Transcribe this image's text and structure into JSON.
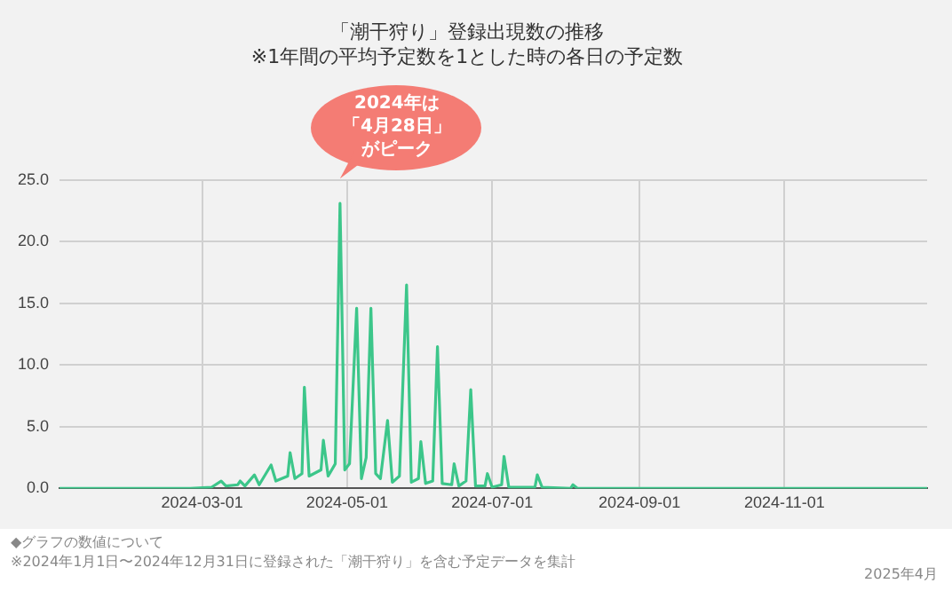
{
  "chart_data": {
    "type": "line",
    "title": "「潮干狩り」登録出現数の推移",
    "subtitle": "※1年間の平均予定数を1とした時の各日の予定数",
    "x": [
      "2024-01-01",
      "2024-02-25",
      "2024-03-05",
      "2024-03-09",
      "2024-03-11",
      "2024-03-16",
      "2024-03-17",
      "2024-03-19",
      "2024-03-23",
      "2024-03-25",
      "2024-03-30",
      "2024-04-01",
      "2024-04-06",
      "2024-04-07",
      "2024-04-09",
      "2024-04-12",
      "2024-04-13",
      "2024-04-15",
      "2024-04-20",
      "2024-04-21",
      "2024-04-23",
      "2024-04-26",
      "2024-04-28",
      "2024-04-30",
      "2024-05-02",
      "2024-05-05",
      "2024-05-07",
      "2024-05-09",
      "2024-05-11",
      "2024-05-13",
      "2024-05-15",
      "2024-05-18",
      "2024-05-20",
      "2024-05-23",
      "2024-05-26",
      "2024-05-28",
      "2024-05-31",
      "2024-06-01",
      "2024-06-03",
      "2024-06-06",
      "2024-06-08",
      "2024-06-10",
      "2024-06-14",
      "2024-06-15",
      "2024-06-17",
      "2024-06-20",
      "2024-06-22",
      "2024-06-24",
      "2024-06-28",
      "2024-06-29",
      "2024-07-01",
      "2024-07-05",
      "2024-07-06",
      "2024-07-08",
      "2024-07-19",
      "2024-07-20",
      "2024-07-22",
      "2024-08-03",
      "2024-08-04",
      "2024-08-06",
      "2024-12-31"
    ],
    "series": [
      {
        "color": "#3cc68a",
        "values": [
          0,
          0,
          0.1,
          0.6,
          0.2,
          0.3,
          0.6,
          0.2,
          1.1,
          0.3,
          1.9,
          0.6,
          1.0,
          2.9,
          0.8,
          1.2,
          8.2,
          1.0,
          1.5,
          3.9,
          1.0,
          2.0,
          23.1,
          1.5,
          2.0,
          14.6,
          0.8,
          2.5,
          14.6,
          1.2,
          0.8,
          5.5,
          0.5,
          1.0,
          16.5,
          0.5,
          0.8,
          3.8,
          0.4,
          0.6,
          11.5,
          0.4,
          0.3,
          2.0,
          0.2,
          0.6,
          8.0,
          0.2,
          0.2,
          1.2,
          0.1,
          0.3,
          2.6,
          0.1,
          0.1,
          1.1,
          0.1,
          0,
          0.3,
          0,
          0
        ]
      }
    ],
    "xlim": [
      "2024-01-01",
      "2024-12-31"
    ],
    "xticks": [
      "2024-03-01",
      "2024-05-01",
      "2024-07-01",
      "2024-09-01",
      "2024-11-01"
    ],
    "ylim": [
      0,
      25
    ],
    "yticks": [
      {
        "value": 0,
        "label": "0.0"
      },
      {
        "value": 5,
        "label": "5.0"
      },
      {
        "value": 10,
        "label": "10.0"
      },
      {
        "value": 15,
        "label": "15.0"
      },
      {
        "value": 20,
        "label": "20.0"
      },
      {
        "value": 25,
        "label": "25.0"
      }
    ],
    "grid": true,
    "legend": false,
    "marker": "none",
    "line_style": "solid",
    "annotations": [
      {
        "text": "2024年は「4月28日」がピーク",
        "x": "2024-04-28",
        "y": 23.1
      },
      "◆グラフの数値について",
      "※2024年1月1日〜2024年12月31日に登録された「潮干狩り」を含む予定データを集計",
      "2025年4月"
    ]
  }
}
